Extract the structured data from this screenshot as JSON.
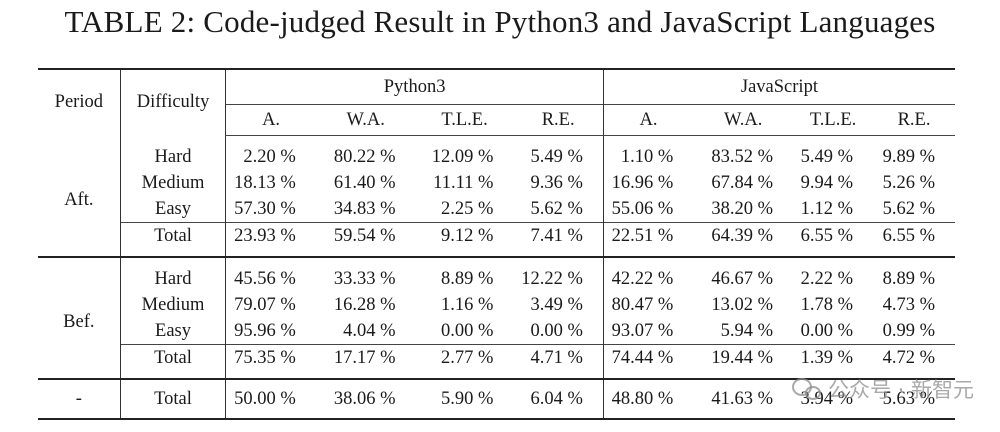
{
  "caption": "TABLE 2: Code-judged Result in Python3 and JavaScript Languages",
  "header": {
    "period": "Period",
    "difficulty": "Difficulty",
    "lang1": "Python3",
    "lang2": "JavaScript",
    "metrics": [
      "A.",
      "W.A.",
      "T.L.E.",
      "R.E."
    ]
  },
  "groups": [
    {
      "period": "Aft.",
      "rows": [
        {
          "difficulty": "Hard",
          "values": [
            "2.20 %",
            "80.22 %",
            "12.09 %",
            "5.49 %",
            "1.10 %",
            "83.52 %",
            "5.49 %",
            "9.89 %"
          ]
        },
        {
          "difficulty": "Medium",
          "values": [
            "18.13 %",
            "61.40 %",
            "11.11 %",
            "9.36 %",
            "16.96 %",
            "67.84 %",
            "9.94 %",
            "5.26 %"
          ]
        },
        {
          "difficulty": "Easy",
          "values": [
            "57.30 %",
            "34.83 %",
            "2.25 %",
            "5.62 %",
            "55.06 %",
            "38.20 %",
            "1.12 %",
            "5.62 %"
          ]
        }
      ],
      "total": {
        "difficulty": "Total",
        "values": [
          "23.93 %",
          "59.54 %",
          "9.12 %",
          "7.41 %",
          "22.51 %",
          "64.39 %",
          "6.55 %",
          "6.55 %"
        ]
      }
    },
    {
      "period": "Bef.",
      "rows": [
        {
          "difficulty": "Hard",
          "values": [
            "45.56 %",
            "33.33 %",
            "8.89 %",
            "12.22 %",
            "42.22 %",
            "46.67 %",
            "2.22 %",
            "8.89 %"
          ]
        },
        {
          "difficulty": "Medium",
          "values": [
            "79.07 %",
            "16.28 %",
            "1.16 %",
            "3.49 %",
            "80.47 %",
            "13.02 %",
            "1.78 %",
            "4.73 %"
          ]
        },
        {
          "difficulty": "Easy",
          "values": [
            "95.96 %",
            "4.04 %",
            "0.00 %",
            "0.00 %",
            "93.07 %",
            "5.94 %",
            "0.00 %",
            "0.99 %"
          ]
        }
      ],
      "total": {
        "difficulty": "Total",
        "values": [
          "75.35 %",
          "17.17 %",
          "2.77 %",
          "4.71 %",
          "74.44 %",
          "19.44 %",
          "1.39 %",
          "4.72 %"
        ]
      }
    }
  ],
  "overall": {
    "period": "-",
    "difficulty": "Total",
    "values": [
      "50.00 %",
      "38.06 %",
      "5.90 %",
      "6.04 %",
      "48.80 %",
      "41.63 %",
      "3.94 %",
      "5.63 %"
    ]
  },
  "watermark": "公众号 · 新智元"
}
